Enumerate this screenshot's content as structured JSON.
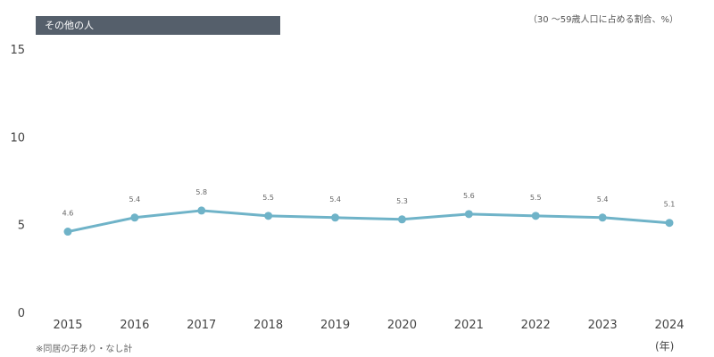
{
  "chart_data": {
    "type": "line",
    "title": "その他の人",
    "unit_note": "（30 〜59歳人口に占める割合、%）",
    "footnote": "※同居の子あり・なし計",
    "xlabel": "(年)",
    "ylabel": "",
    "ylim": [
      0,
      15
    ],
    "yticks": [
      0,
      5,
      10,
      15
    ],
    "categories": [
      "2015",
      "2016",
      "2017",
      "2018",
      "2019",
      "2020",
      "2021",
      "2022",
      "2023",
      "2024"
    ],
    "series": [
      {
        "name": "その他の人",
        "values": [
          4.6,
          5.4,
          5.8,
          5.5,
          5.4,
          5.3,
          5.6,
          5.5,
          5.4,
          5.1
        ],
        "color": "#6fb3c8"
      }
    ],
    "grid": false
  }
}
